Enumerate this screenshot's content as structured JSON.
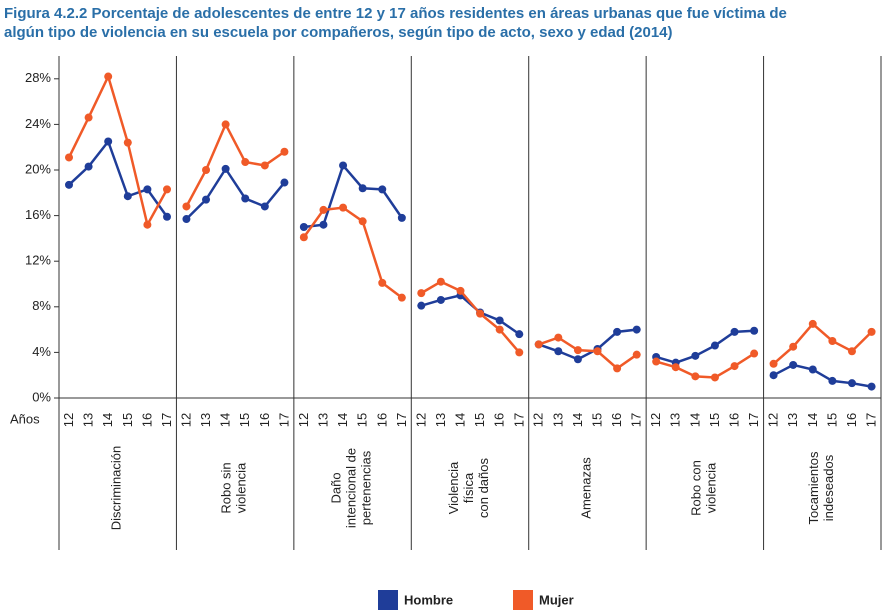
{
  "chart_data": {
    "type": "line",
    "title": "Figura 4.2.2 Porcentaje de adolescentes de entre 12 y 17 años residentes en áreas urbanas que fue víctima de\nalgún tipo de violencia en su escuela por compañeros, según tipo de acto, sexo y edad (2014)",
    "x_label": "Años",
    "groups": [
      "Discriminación",
      "Robo sin\nviolencia",
      "Daño\nintencional de\npertenencias",
      "Violencia\nfísica\ncon daños",
      "Amenazas",
      "Robo con\nviolencia",
      "Tocamientos\nindeseados"
    ],
    "categories": [
      12,
      13,
      14,
      15,
      16,
      17,
      12,
      13,
      14,
      15,
      16,
      17,
      12,
      13,
      14,
      15,
      16,
      17,
      12,
      13,
      14,
      15,
      16,
      17,
      12,
      13,
      14,
      15,
      16,
      17,
      12,
      13,
      14,
      15,
      16,
      17,
      12,
      13,
      14,
      15,
      16,
      17
    ],
    "series": [
      {
        "name": "Hombre",
        "color": "#1f3d99",
        "values": [
          18.7,
          20.3,
          22.5,
          17.7,
          18.3,
          15.9,
          15.7,
          17.4,
          20.1,
          17.5,
          16.8,
          18.9,
          15.0,
          15.2,
          20.4,
          18.4,
          18.3,
          15.8,
          8.1,
          8.6,
          9.0,
          7.5,
          6.8,
          5.6,
          4.7,
          4.1,
          3.4,
          4.3,
          5.8,
          6.0,
          3.6,
          3.1,
          3.7,
          4.6,
          5.8,
          5.9,
          2.0,
          2.9,
          2.5,
          1.5,
          1.3,
          1.0
        ]
      },
      {
        "name": "Mujer",
        "color": "#f05a28",
        "values": [
          21.1,
          24.6,
          28.2,
          22.4,
          15.2,
          18.3,
          16.8,
          20.0,
          24.0,
          20.7,
          20.4,
          21.6,
          14.1,
          16.5,
          16.7,
          15.5,
          10.1,
          8.8,
          9.2,
          10.2,
          9.4,
          7.4,
          6.0,
          4.0,
          4.7,
          5.3,
          4.2,
          4.1,
          2.6,
          3.8,
          3.2,
          2.7,
          1.9,
          1.8,
          2.8,
          3.9,
          3.0,
          4.5,
          6.5,
          5.0,
          4.1,
          5.8
        ]
      }
    ],
    "ylim": [
      0,
      30
    ],
    "yticks": [
      {
        "value": 0,
        "label": "0%"
      },
      {
        "value": 4,
        "label": "4%"
      },
      {
        "value": 8,
        "label": "8%"
      },
      {
        "value": 12,
        "label": "12%"
      },
      {
        "value": 16,
        "label": "16%"
      },
      {
        "value": 20,
        "label": "20%"
      },
      {
        "value": 24,
        "label": "24%"
      },
      {
        "value": 28,
        "label": "28%"
      }
    ],
    "grid": false
  }
}
